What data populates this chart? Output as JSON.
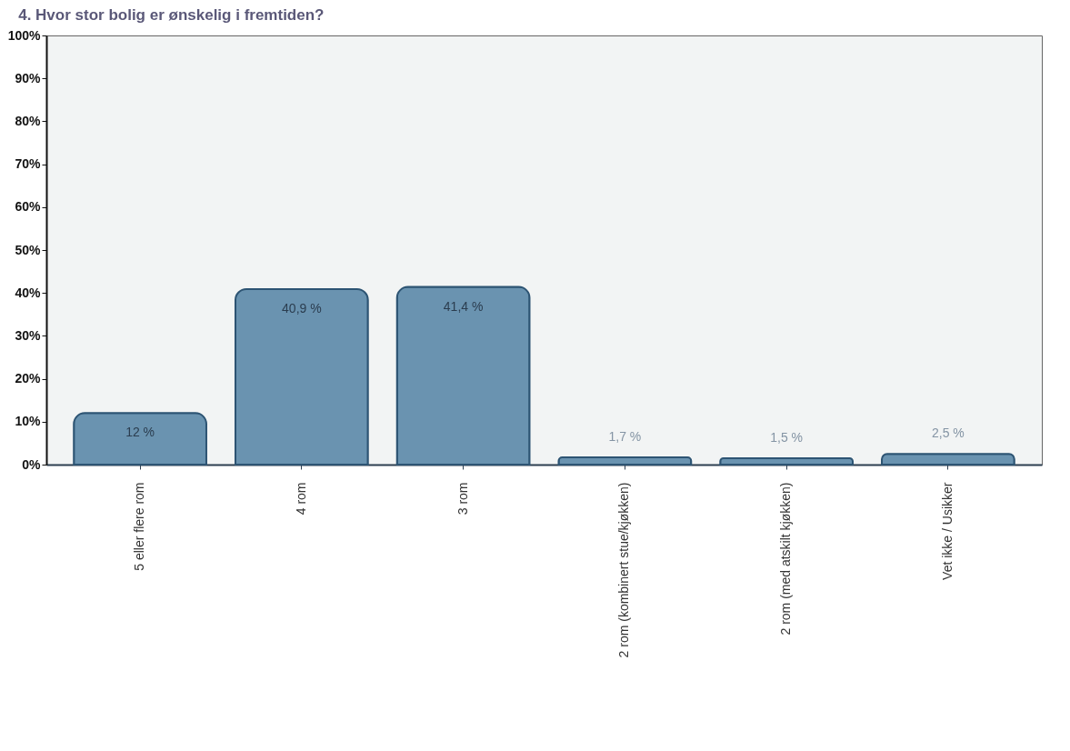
{
  "chart_data": {
    "type": "bar",
    "title": "4. Hvor stor bolig er ønskelig i fremtiden?",
    "categories": [
      "5 eller flere rom",
      "4 rom",
      "3 rom",
      "2 rom (kombinert stue/kjøkken)",
      "2 rom (med atskilt kjøkken)",
      "Vet ikke / Usikker"
    ],
    "values": [
      12,
      40.9,
      41.4,
      1.7,
      1.5,
      2.5
    ],
    "value_labels": [
      "12 %",
      "40,9 %",
      "41,4 %",
      "1,7 %",
      "1,5 %",
      "2,5 %"
    ],
    "color": "#6a93b0",
    "ylim": [
      0,
      100
    ],
    "yticks": [
      {
        "value": 0,
        "label": "0%"
      },
      {
        "value": 10,
        "label": "10%"
      },
      {
        "value": 20,
        "label": "20%"
      },
      {
        "value": 30,
        "label": "30%"
      },
      {
        "value": 40,
        "label": "40%"
      },
      {
        "value": 50,
        "label": "50%"
      },
      {
        "value": 60,
        "label": "60%"
      },
      {
        "value": 70,
        "label": "70%"
      },
      {
        "value": 80,
        "label": "80%"
      },
      {
        "value": 90,
        "label": "90%"
      },
      {
        "value": 100,
        "label": "100%"
      }
    ]
  }
}
